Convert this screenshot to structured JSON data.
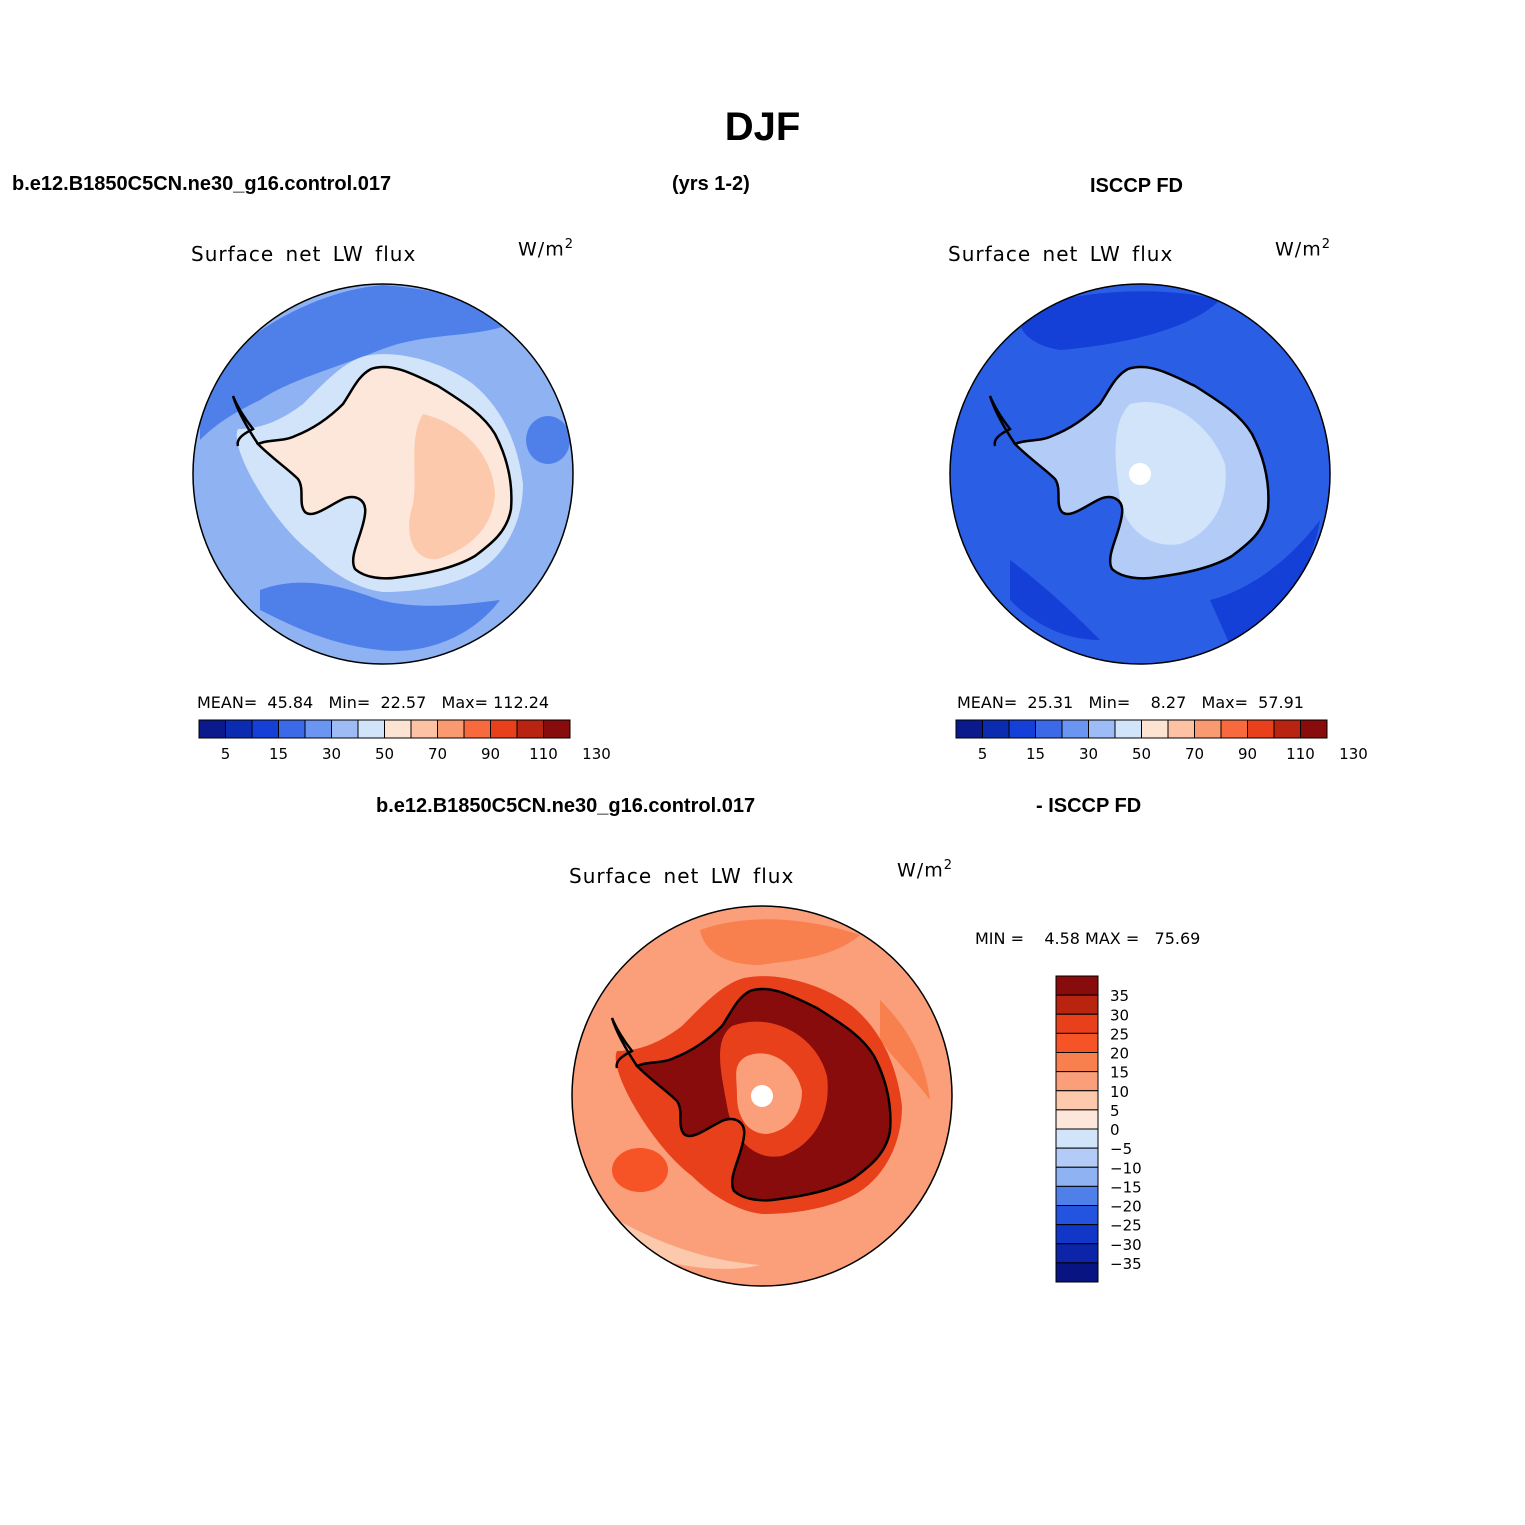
{
  "title": "DJF",
  "header": {
    "case": "b.e12.B1850C5CN.ne30_g16.control.017",
    "years": "(yrs 1-2)",
    "obs": "ISCCP FD",
    "diff_case": "b.e12.B1850C5CN.ne30_g16.control.017",
    "diff_obs": "- ISCCP FD"
  },
  "panels": {
    "model": {
      "field": "Surface net LW flux",
      "units": "W/m",
      "units_sup": "2",
      "mean_label": "MEAN=",
      "mean": "45.84",
      "min_label": "Min=",
      "min": "22.57",
      "max_label": "Max=",
      "max": "112.24"
    },
    "obs": {
      "field": "Surface net LW flux",
      "units": "W/m",
      "units_sup": "2",
      "mean_label": "MEAN=",
      "mean": "25.31",
      "min_label": "Min=",
      "min": "8.27",
      "max_label": "Max=",
      "max": "57.91"
    },
    "diff": {
      "field": "Surface net LW flux",
      "units": "W/m",
      "units_sup": "2",
      "min_label": "MIN =",
      "min": "4.58",
      "max_label": "MAX =",
      "max": "75.69"
    }
  },
  "colorbar_abs": {
    "labels": [
      "5",
      "15",
      "30",
      "50",
      "70",
      "90",
      "110",
      "130"
    ],
    "colors": [
      "#0a1a8c",
      "#0b2bb0",
      "#1440d8",
      "#3a6ae8",
      "#6a95f0",
      "#9dbcf5",
      "#d2e4fa",
      "#fde3d2",
      "#fcc2a3",
      "#fa9a70",
      "#f86a3e",
      "#e8401b",
      "#b82410",
      "#880c0c"
    ]
  },
  "colorbar_diff": {
    "labels": [
      "35",
      "30",
      "25",
      "20",
      "15",
      "10",
      "5",
      "0",
      "−5",
      "−10",
      "−15",
      "−20",
      "−25",
      "−30",
      "−35"
    ],
    "colors": [
      "#880c0c",
      "#b82410",
      "#e8401b",
      "#f65426",
      "#f8804e",
      "#fa9f7a",
      "#fcc9ad",
      "#fde7da",
      "#d2e4fa",
      "#b3ccf7",
      "#8eb2f2",
      "#4f80ea",
      "#2254e0",
      "#1037c8",
      "#0b24a8",
      "#081482"
    ]
  },
  "map_colors": {
    "ocean_model": "#8eb2f2",
    "ocean_model_dark": "#4f80ea",
    "ice_model": "#fde7da",
    "ice_model_warm": "#fcc9ad",
    "ocean_obs": "#2a5ee5",
    "ocean_obs_dark": "#1440d8",
    "ice_obs": "#b3ccf7",
    "ice_obs_center": "#d2e4fa",
    "diff_outer": "#fa9f7a",
    "diff_mid": "#f8804e",
    "diff_high": "#b82410",
    "diff_max": "#880c0c"
  }
}
